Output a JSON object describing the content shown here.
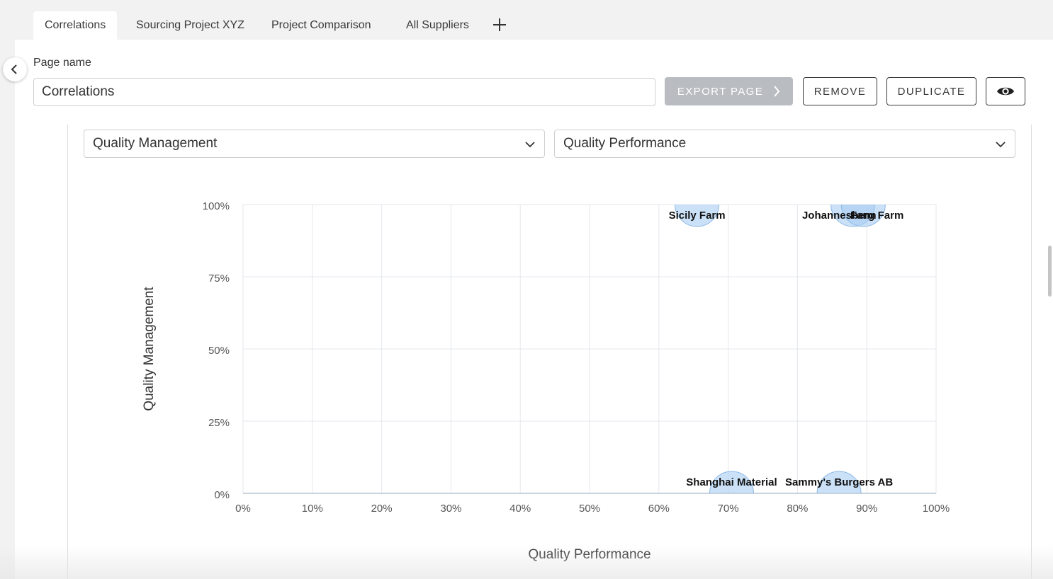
{
  "tabs": [
    {
      "label": "Correlations",
      "active": true
    },
    {
      "label": "Sourcing Project XYZ",
      "active": false
    },
    {
      "label": "Project Comparison",
      "active": false
    },
    {
      "label": "All Suppliers",
      "active": false
    }
  ],
  "page": {
    "name_label": "Page name",
    "name_value": "Correlations"
  },
  "toolbar": {
    "export_label": "EXPORT PAGE",
    "remove_label": "REMOVE",
    "duplicate_label": "DUPLICATE"
  },
  "selectors": {
    "y_metric": "Quality Management",
    "x_metric": "Quality Performance"
  },
  "colors": {
    "bubble_fill": "#a9cdf2",
    "bubble_stroke": "#8ab8e6",
    "grid": "#e4e7ec",
    "export_bg": "#b9bcc0"
  },
  "chart_data": {
    "type": "scatter",
    "xlabel": "Quality Performance",
    "ylabel": "Quality Management",
    "xlim": [
      0,
      100
    ],
    "ylim": [
      0,
      100
    ],
    "x_ticks": [
      "0%",
      "10%",
      "20%",
      "30%",
      "40%",
      "50%",
      "60%",
      "70%",
      "80%",
      "90%",
      "100%"
    ],
    "y_ticks": [
      "0%",
      "25%",
      "50%",
      "75%",
      "100%"
    ],
    "grid": true,
    "points": [
      {
        "name": "Sicily Farm",
        "x": 65.5,
        "y": 100
      },
      {
        "name": "Johannesberg Farm",
        "x": 88,
        "y": 100
      },
      {
        "name": "Farm",
        "x": 89.5,
        "y": 100
      },
      {
        "name": "Shanghai Material",
        "x": 70.5,
        "y": 0
      },
      {
        "name": "Sammy's Burgers AB",
        "x": 86,
        "y": 0
      }
    ]
  }
}
